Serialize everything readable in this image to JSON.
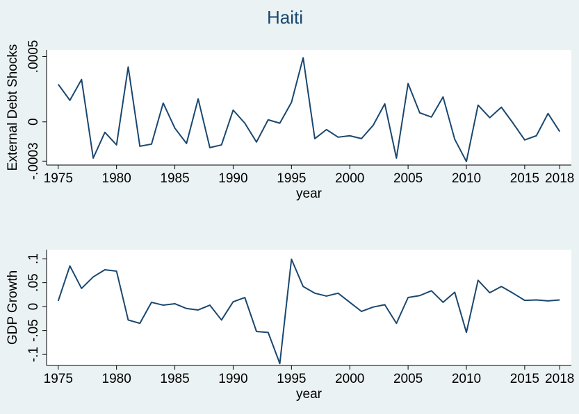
{
  "chart_data": [
    {
      "type": "line",
      "title": "Haiti",
      "xlabel": "year",
      "ylabel": "External Debt Shocks",
      "color": "#1a476f",
      "x": [
        1975,
        1976,
        1977,
        1978,
        1979,
        1980,
        1981,
        1982,
        1983,
        1984,
        1985,
        1986,
        1987,
        1988,
        1989,
        1990,
        1991,
        1992,
        1993,
        1994,
        1995,
        1996,
        1997,
        1998,
        1999,
        2000,
        2001,
        2002,
        2003,
        2004,
        2005,
        2006,
        2007,
        2008,
        2009,
        2010,
        2011,
        2012,
        2013,
        2014,
        2015,
        2016,
        2017,
        2018
      ],
      "values": [
        0.000287,
        0.000165,
        0.000324,
        -0.000277,
        -8e-05,
        -0.000176,
        0.00042,
        -0.000186,
        -0.00017,
        0.000144,
        -4.8e-05,
        -0.000165,
        0.000176,
        -0.000197,
        -0.000176,
        9e-05,
        -1e-05,
        -0.000154,
        1.6e-05,
        -1e-05,
        0.000149,
        0.00049,
        -0.000128,
        -5.9e-05,
        -0.000117,
        -0.000106,
        -0.000128,
        -2.7e-05,
        0.000138,
        -0.000277,
        0.000293,
        6.9e-05,
        3.7e-05,
        0.000191,
        -0.000133,
        -0.000303,
        0.000128,
        3.2e-05,
        0.000112,
        -1e-05,
        -0.000138,
        -0.000106,
        6.4e-05,
        -7.4e-05
      ],
      "xlim": [
        1974,
        2019
      ],
      "xticks": [
        1975,
        1980,
        1985,
        1990,
        1995,
        2000,
        2005,
        2010,
        2015,
        2018
      ],
      "ylim": [
        -0.00033,
        0.00055
      ],
      "yticks": [
        {
          "value": -0.0003,
          "label": "-.0003"
        },
        0,
        {
          "value": 0.0005,
          "label": ".0005"
        }
      ]
    },
    {
      "type": "line",
      "xlabel": "year",
      "ylabel": "GDP Growth",
      "color": "#1a476f",
      "x": [
        1975,
        1976,
        1977,
        1978,
        1979,
        1980,
        1981,
        1982,
        1983,
        1984,
        1985,
        1986,
        1987,
        1988,
        1989,
        1990,
        1991,
        1992,
        1993,
        1994,
        1995,
        1996,
        1997,
        1998,
        1999,
        2000,
        2001,
        2002,
        2003,
        2004,
        2005,
        2006,
        2007,
        2008,
        2009,
        2010,
        2011,
        2012,
        2013,
        2014,
        2015,
        2016,
        2017,
        2018
      ],
      "values": [
        0.012,
        0.085,
        0.038,
        0.062,
        0.077,
        0.074,
        -0.028,
        -0.035,
        0.009,
        0.003,
        0.006,
        -0.004,
        -0.007,
        0.003,
        -0.028,
        0.01,
        0.019,
        -0.052,
        -0.054,
        -0.119,
        0.099,
        0.042,
        0.028,
        0.022,
        0.028,
        0.009,
        -0.01,
        -0.001,
        0.004,
        -0.035,
        0.019,
        0.023,
        0.033,
        0.009,
        0.03,
        -0.054,
        0.055,
        0.029,
        0.042,
        0.028,
        0.013,
        0.014,
        0.012,
        0.014
      ],
      "xlim": [
        1974,
        2019
      ],
      "xticks": [
        1975,
        1980,
        1985,
        1990,
        1995,
        2000,
        2005,
        2010,
        2015,
        2018
      ],
      "ylim": [
        -0.123,
        0.119
      ],
      "yticks": [
        {
          "value": -0.1,
          "label": "-.1"
        },
        {
          "value": -0.05,
          "label": "-.05"
        },
        0,
        {
          "value": 0.05,
          "label": ".05"
        },
        {
          "value": 0.1,
          "label": ".1"
        }
      ]
    }
  ]
}
